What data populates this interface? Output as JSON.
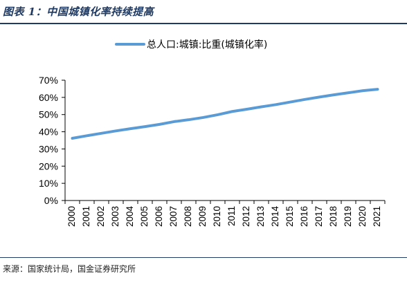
{
  "header": {
    "figure_title": "图表 1：中国城镇化率持续提高"
  },
  "footer": {
    "source": "来源：国家统计局，国金证券研究所"
  },
  "colors": {
    "series_line": "#5b9bd5",
    "title_navy": "#1f3a63"
  },
  "chart_data": {
    "type": "line",
    "title": "",
    "xlabel": "",
    "ylabel": "",
    "ylim": [
      0,
      70
    ],
    "y_ticks": [
      "0%",
      "10%",
      "20%",
      "30%",
      "40%",
      "50%",
      "60%",
      "70%"
    ],
    "legend_position": "top-center",
    "grid": false,
    "categories": [
      "2000",
      "2001",
      "2002",
      "2003",
      "2004",
      "2005",
      "2006",
      "2007",
      "2008",
      "2009",
      "2010",
      "2011",
      "2012",
      "2013",
      "2014",
      "2015",
      "2016",
      "2017",
      "2018",
      "2019",
      "2020",
      "2021"
    ],
    "series": [
      {
        "name": "总人口:城镇:比重(城镇化率)",
        "values": [
          36.2,
          37.7,
          39.1,
          40.5,
          41.8,
          43.0,
          44.3,
          45.9,
          47.0,
          48.3,
          49.9,
          51.8,
          53.1,
          54.5,
          55.8,
          57.3,
          58.8,
          60.2,
          61.5,
          62.7,
          63.9,
          64.7
        ]
      }
    ]
  }
}
